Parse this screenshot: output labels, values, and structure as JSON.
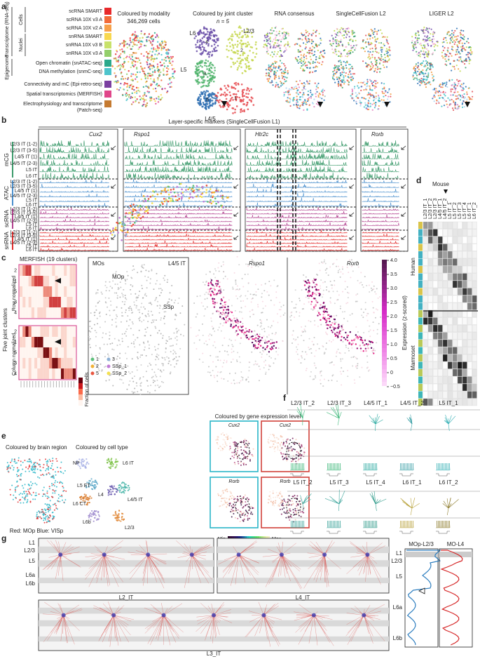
{
  "panel_a": {
    "letter": "a",
    "groups": {
      "transcriptome": "Transcriptome (RNA-seq)",
      "cells": "Cells",
      "nuclei": "Nuclei",
      "epigenome": "Epigenome"
    },
    "legend": [
      {
        "lines": [
          "scRNA SMART"
        ],
        "color": "#e8292b"
      },
      {
        "lines": [
          "scRNA 10X v3 A"
        ],
        "color": "#f26b3a"
      },
      {
        "lines": [
          "scRNA 10X v2 A"
        ],
        "color": "#f7a04a"
      },
      {
        "lines": [
          "snRNA SMART"
        ],
        "color": "#f8d84e"
      },
      {
        "lines": [
          "snRNA 10X v3 B"
        ],
        "color": "#c8e26a"
      },
      {
        "lines": [
          "snRNA 10X v3 A"
        ],
        "color": "#93cf6b"
      },
      {
        "lines": [
          "Open chromatin (snATAC-seq)"
        ],
        "color": "#2aa98b"
      },
      {
        "lines": [
          "DNA methylation (snmC-seq)"
        ],
        "color": "#4ec4cc"
      },
      {
        "lines": [
          "Connectivity and mC (Epi-retro-seq)"
        ],
        "color": "#7b3fa0"
      },
      {
        "lines": [
          "Spatial transcriptomics (MERFISH)"
        ],
        "color": "#e0468a"
      },
      {
        "lines": [
          "Electrophysiology and transcriptome",
          "(Patch-seq)"
        ],
        "color": "#c57a30"
      }
    ],
    "umap_titles": [
      "Coloured by modality",
      "Coloured by joint cluster",
      "RNA consensus",
      "SingleCellFusion L2",
      "LIGER L2"
    ],
    "cell_count": "346,269 cells",
    "n": "n = 5",
    "layers": [
      "L6",
      "L2/3",
      "L5",
      "L4/5"
    ],
    "clusters": [
      "4",
      "2",
      "3",
      "5",
      "1"
    ]
  },
  "panel_b": {
    "letter": "b",
    "title": "Layer-specific markers (SingleCellFusion L1)",
    "genes": [
      "Cux2",
      "Rspo1",
      "Htr2c",
      "Rorb"
    ],
    "modalities": [
      "mCG",
      "ATAC",
      "scRNA",
      "snRNA"
    ],
    "rows": [
      "L2/3 IT (1-2)",
      "L2/3 IT (3-5)",
      "L4/5 IT (1)",
      "L4/5 IT (2-3)",
      "L5 IT",
      "L6 IT"
    ]
  },
  "panel_c": {
    "letter": "c",
    "title": "MERFISH (19 clusters)",
    "ylabel": "Five joint clusters",
    "row_norm": "Row normalized",
    "col_norm": "Column normalized",
    "row_labels": [
      "2",
      "1",
      "5",
      "3",
      "4"
    ],
    "fraction": "Fraction of cells",
    "regions": [
      "MOs",
      "MOp",
      "SSp"
    ],
    "cluster_name": "L4/5 IT",
    "spatial_legend": [
      "1",
      "2",
      "5",
      "3",
      "SSp_1",
      "SSp_2"
    ],
    "genes": [
      "Rspo1",
      "Rorb"
    ],
    "colorbar_title": "Expression (z-scored)",
    "colorbar_ticks": [
      "4.0",
      "3.5",
      "3.0",
      "2.5",
      "2.0",
      "1.5",
      "1.0",
      "0.5",
      "0",
      "−0.5"
    ]
  },
  "panel_d": {
    "letter": "d",
    "mouse": "Mouse",
    "human": "Human",
    "marmoset": "Marmoset",
    "columns": [
      "L2/3 IT_1",
      "L2/3 IT_2",
      "L2/3 IT_3",
      "L4/5 IT_1",
      "L4/5 IT_2",
      "L5 IT_1",
      "L5 IT_2",
      "L5 IT_3",
      "L5 IT_4",
      "L6 IT_1",
      "L6 IT_2"
    ]
  },
  "panel_e": {
    "letter": "e",
    "region_title": "Coloured by brain region",
    "type_title": "Coloured by cell type",
    "region_note": "Red: MOp  Blue: VISp",
    "cell_types": [
      "NP",
      "L6 IT",
      "L5 ET",
      "L6 CT",
      "L4",
      "L4/5 IT",
      "L6b",
      "L2/3"
    ],
    "expr_title": "Coloured by gene expression level",
    "expr_genes": [
      "Cux2",
      "Cux2",
      "Rorb",
      "Rorb"
    ],
    "min": "Min",
    "max": "Max"
  },
  "panel_f": {
    "letter": "f",
    "top": [
      "L2/3 IT_2",
      "L2/3 IT_3",
      "L4/5 IT_1",
      "L4/5 IT_2",
      "L5 IT_1"
    ],
    "bottom": [
      "L5 IT_2",
      "L5 IT_3",
      "L5 IT_4",
      "L6 IT_1",
      "L6 IT_2"
    ]
  },
  "panel_g": {
    "letter": "g",
    "layers": [
      "L1",
      "L2/3",
      "L5",
      "L6a",
      "L6b"
    ],
    "cells": [
      "L2_IT",
      "L4_IT",
      "L3_IT"
    ],
    "plots": [
      "MOp-L2/3",
      "MO-L4"
    ]
  }
}
